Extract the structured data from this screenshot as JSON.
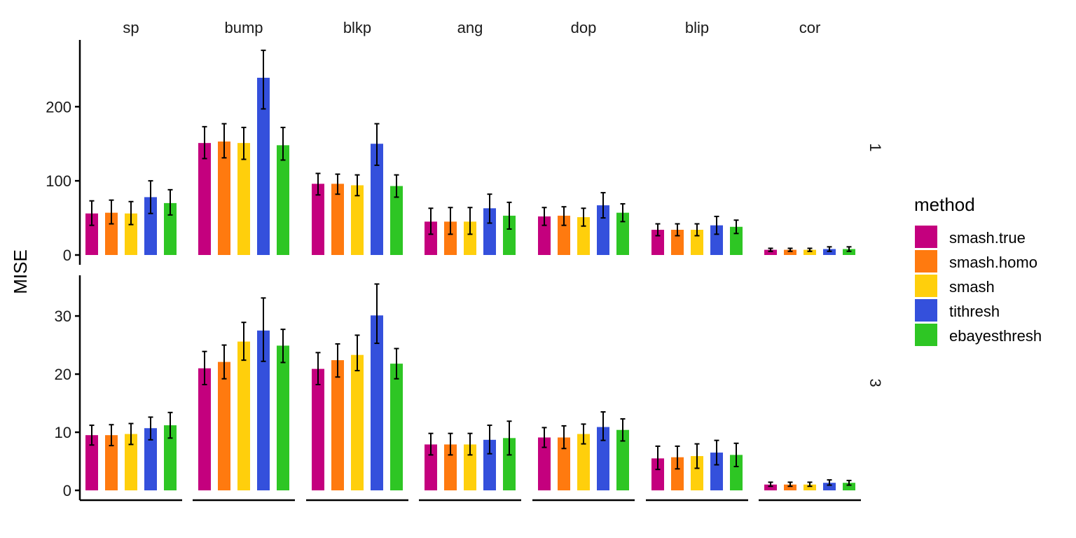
{
  "chart_data": {
    "type": "bar",
    "ylabel": "MISE",
    "xlabel": "",
    "facets_x": [
      "sp",
      "bump",
      "blkp",
      "ang",
      "dop",
      "blip",
      "cor"
    ],
    "facets_y": [
      "1",
      "3"
    ],
    "legend": {
      "title": "method",
      "position": "right",
      "entries": [
        {
          "name": "smash.true",
          "color": "#c4007e"
        },
        {
          "name": "smash.homo",
          "color": "#ff7a0f"
        },
        {
          "name": "smash",
          "color": "#ffcf0c"
        },
        {
          "name": "tithresh",
          "color": "#3450dc"
        },
        {
          "name": "ebayesthresh",
          "color": "#2ec624"
        }
      ]
    },
    "grid": false,
    "panels": [
      {
        "row": "1",
        "ylim": [
          0,
          290
        ],
        "yticks": [
          0,
          100,
          200
        ],
        "groups": [
          {
            "facet": "sp",
            "values": [
              56,
              57,
              56,
              78,
              70
            ],
            "errors": [
              [
                40,
                73
              ],
              [
                42,
                74
              ],
              [
                41,
                72
              ],
              [
                56,
                100
              ],
              [
                54,
                88
              ]
            ]
          },
          {
            "facet": "bump",
            "values": [
              151,
              153,
              151,
              239,
              148
            ],
            "errors": [
              [
                130,
                173
              ],
              [
                131,
                177
              ],
              [
                129,
                172
              ],
              [
                197,
                276
              ],
              [
                128,
                172
              ]
            ]
          },
          {
            "facet": "blkp",
            "values": [
              96,
              96,
              94,
              150,
              93
            ],
            "errors": [
              [
                81,
                110
              ],
              [
                82,
                109
              ],
              [
                80,
                108
              ],
              [
                121,
                177
              ],
              [
                78,
                108
              ]
            ]
          },
          {
            "facet": "ang",
            "values": [
              45,
              45,
              45,
              63,
              53
            ],
            "errors": [
              [
                28,
                63
              ],
              [
                28,
                64
              ],
              [
                28,
                64
              ],
              [
                43,
                82
              ],
              [
                35,
                71
              ]
            ]
          },
          {
            "facet": "dop",
            "values": [
              52,
              53,
              51,
              67,
              57
            ],
            "errors": [
              [
                40,
                64
              ],
              [
                40,
                65
              ],
              [
                39,
                63
              ],
              [
                50,
                84
              ],
              [
                45,
                69
              ]
            ]
          },
          {
            "facet": "blip",
            "values": [
              34,
              34,
              34,
              40,
              38
            ],
            "errors": [
              [
                26,
                42
              ],
              [
                26,
                42
              ],
              [
                26,
                42
              ],
              [
                28,
                52
              ],
              [
                29,
                47
              ]
            ]
          },
          {
            "facet": "cor",
            "values": [
              7,
              7,
              7,
              8,
              8
            ],
            "errors": [
              [
                5,
                9
              ],
              [
                5,
                9
              ],
              [
                5,
                9
              ],
              [
                5,
                11
              ],
              [
                5,
                11
              ]
            ]
          }
        ]
      },
      {
        "row": "3",
        "ylim": [
          0,
          37
        ],
        "yticks": [
          0,
          10,
          20,
          30
        ],
        "groups": [
          {
            "facet": "sp",
            "values": [
              9.5,
              9.5,
              9.7,
              10.7,
              11.2
            ],
            "errors": [
              [
                7.8,
                11.2
              ],
              [
                7.7,
                11.3
              ],
              [
                7.9,
                11.5
              ],
              [
                8.7,
                12.6
              ],
              [
                9.0,
                13.4
              ]
            ]
          },
          {
            "facet": "bump",
            "values": [
              21.0,
              22.1,
              25.6,
              27.5,
              24.9
            ],
            "errors": [
              [
                18.2,
                23.9
              ],
              [
                19.2,
                25.0
              ],
              [
                22.4,
                28.9
              ],
              [
                22.2,
                33.1
              ],
              [
                22.0,
                27.7
              ]
            ]
          },
          {
            "facet": "blkp",
            "values": [
              20.9,
              22.4,
              23.3,
              30.1,
              21.8
            ],
            "errors": [
              [
                18.2,
                23.7
              ],
              [
                19.5,
                25.2
              ],
              [
                20.6,
                26.7
              ],
              [
                25.3,
                35.5
              ],
              [
                19.2,
                24.4
              ]
            ]
          },
          {
            "facet": "ang",
            "values": [
              7.9,
              7.9,
              7.9,
              8.7,
              9.0
            ],
            "errors": [
              [
                6.1,
                9.8
              ],
              [
                6.1,
                9.8
              ],
              [
                6.1,
                9.8
              ],
              [
                6.3,
                11.2
              ],
              [
                6.1,
                11.9
              ]
            ]
          },
          {
            "facet": "dop",
            "values": [
              9.1,
              9.1,
              9.7,
              10.9,
              10.4
            ],
            "errors": [
              [
                7.4,
                10.8
              ],
              [
                7.2,
                11.1
              ],
              [
                8.0,
                11.4
              ],
              [
                8.6,
                13.5
              ],
              [
                8.5,
                12.3
              ]
            ]
          },
          {
            "facet": "blip",
            "values": [
              5.5,
              5.7,
              5.9,
              6.5,
              6.1
            ],
            "errors": [
              [
                3.6,
                7.6
              ],
              [
                3.7,
                7.6
              ],
              [
                3.8,
                8.0
              ],
              [
                4.4,
                8.6
              ],
              [
                4.1,
                8.1
              ]
            ]
          },
          {
            "facet": "cor",
            "values": [
              1.0,
              1.0,
              1.0,
              1.3,
              1.3
            ],
            "errors": [
              [
                0.7,
                1.4
              ],
              [
                0.7,
                1.4
              ],
              [
                0.7,
                1.4
              ],
              [
                0.9,
                1.8
              ],
              [
                0.9,
                1.7
              ]
            ]
          }
        ]
      }
    ]
  }
}
